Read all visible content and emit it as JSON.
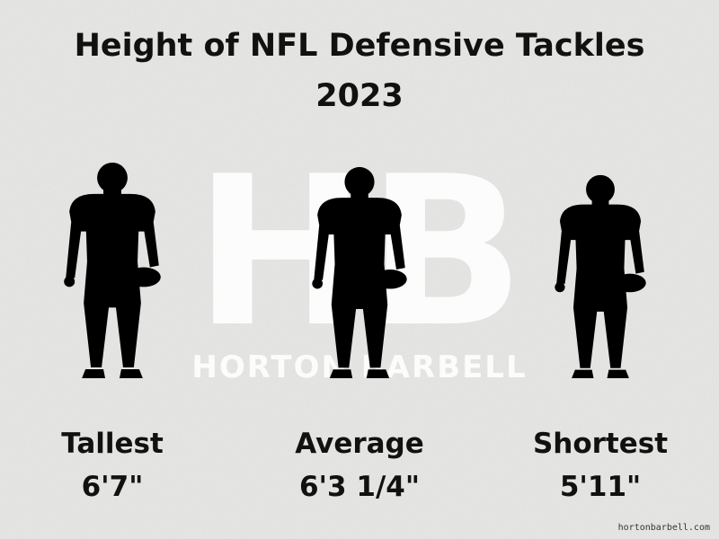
{
  "title": [
    "Height of NFL Defensive Tackles",
    "2023"
  ],
  "watermark": {
    "logo": "HB",
    "text": "HORTON BARBELL"
  },
  "players": [
    {
      "label": "Tallest",
      "height": "6'7\""
    },
    {
      "label": "Average",
      "height": "6'3 1/4\""
    },
    {
      "label": "Shortest",
      "height": "5'11\""
    }
  ],
  "footer": "hortonbarbell.com"
}
